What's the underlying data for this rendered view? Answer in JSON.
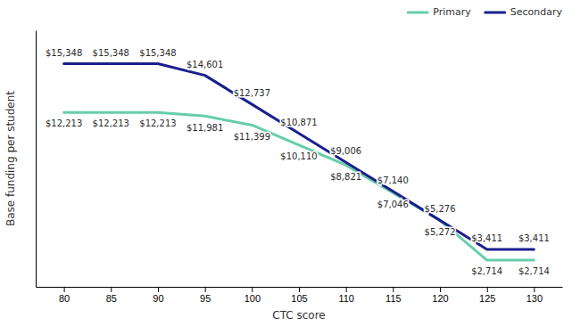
{
  "chart_data": {
    "type": "line",
    "xlabel": "CTC score",
    "ylabel": "Base funding per student",
    "x": [
      80,
      85,
      90,
      95,
      100,
      105,
      110,
      115,
      120,
      125,
      130
    ],
    "series": [
      {
        "name": "Primary",
        "color": "#66CDAA",
        "values": [
          12213,
          12213,
          12213,
          11981,
          11399,
          10110,
          8821,
          7046,
          5272,
          2714,
          2714
        ],
        "value_labels": [
          "$12,213",
          "$12,213",
          "$12,213",
          "$11,981",
          "$11,399",
          "$10,110",
          "$8,821",
          "$7,046",
          "$5,272",
          "$2,714",
          "$2,714"
        ]
      },
      {
        "name": "Secondary",
        "color": "#1a1f8c",
        "values": [
          15348,
          15348,
          15348,
          14601,
          12737,
          10871,
          9006,
          7140,
          5276,
          3411,
          3411
        ],
        "value_labels": [
          "$15,348",
          "$15,348",
          "$15,348",
          "$14,601",
          "$12,737",
          "$10,871",
          "$9,006",
          "$7,140",
          "$5,276",
          "$3,411",
          "$3,411"
        ]
      }
    ],
    "xlim": [
      77,
      133
    ],
    "xticks": [
      80,
      85,
      90,
      95,
      100,
      105,
      110,
      115,
      120,
      125,
      130
    ],
    "ylim": [
      1000,
      17500
    ],
    "tick_labels": "x",
    "grid": false,
    "legend": "top-right",
    "data_labels": true
  }
}
